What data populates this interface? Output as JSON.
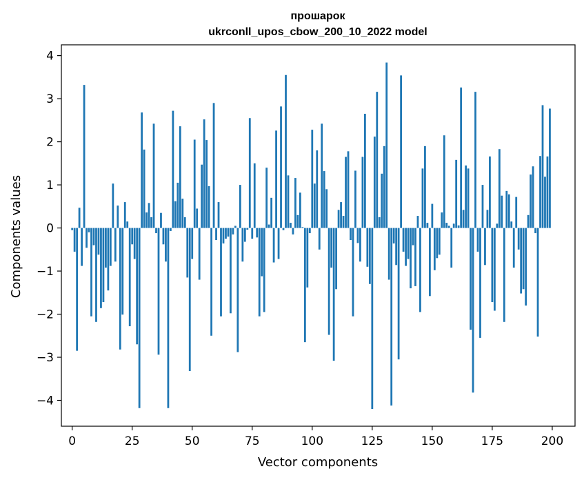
{
  "chart_data": {
    "type": "bar",
    "title_line1": "прошарок",
    "title_line2": "ukrconll_upos_cbow_200_10_2022 model",
    "xlabel": "Vector components",
    "ylabel": "Components values",
    "xlim": [
      -4.5,
      209.5
    ],
    "ylim": [
      -4.6,
      4.25
    ],
    "xticks": [
      0,
      25,
      50,
      75,
      100,
      125,
      150,
      175,
      200
    ],
    "yticks": [
      -4,
      -3,
      -2,
      -1,
      0,
      1,
      2,
      3,
      4
    ],
    "xtick_labels": [
      "0",
      "25",
      "50",
      "75",
      "100",
      "125",
      "150",
      "175",
      "200"
    ],
    "ytick_labels": [
      "−4",
      "−3",
      "−2",
      "−1",
      "0",
      "1",
      "2",
      "3",
      "4"
    ],
    "bar_color": "#1f77b4",
    "x": [
      0,
      1,
      2,
      3,
      4,
      5,
      6,
      7,
      8,
      9,
      10,
      11,
      12,
      13,
      14,
      15,
      16,
      17,
      18,
      19,
      20,
      21,
      22,
      23,
      24,
      25,
      26,
      27,
      28,
      29,
      30,
      31,
      32,
      33,
      34,
      35,
      36,
      37,
      38,
      39,
      40,
      41,
      42,
      43,
      44,
      45,
      46,
      47,
      48,
      49,
      50,
      51,
      52,
      53,
      54,
      55,
      56,
      57,
      58,
      59,
      60,
      61,
      62,
      63,
      64,
      65,
      66,
      67,
      68,
      69,
      70,
      71,
      72,
      73,
      74,
      75,
      76,
      77,
      78,
      79,
      80,
      81,
      82,
      83,
      84,
      85,
      86,
      87,
      88,
      89,
      90,
      91,
      92,
      93,
      94,
      95,
      96,
      97,
      98,
      99,
      100,
      101,
      102,
      103,
      104,
      105,
      106,
      107,
      108,
      109,
      110,
      111,
      112,
      113,
      114,
      115,
      116,
      117,
      118,
      119,
      120,
      121,
      122,
      123,
      124,
      125,
      126,
      127,
      128,
      129,
      130,
      131,
      132,
      133,
      134,
      135,
      136,
      137,
      138,
      139,
      140,
      141,
      142,
      143,
      144,
      145,
      146,
      147,
      148,
      149,
      150,
      151,
      152,
      153,
      154,
      155,
      156,
      157,
      158,
      159,
      160,
      161,
      162,
      163,
      164,
      165,
      166,
      167,
      168,
      169,
      170,
      171,
      172,
      173,
      174,
      175,
      176,
      177,
      178,
      179,
      180,
      181,
      182,
      183,
      184,
      185,
      186,
      187,
      188,
      189,
      190,
      191,
      192,
      193,
      194,
      195,
      196,
      197,
      198,
      199
    ],
    "values": [
      -0.05,
      -0.55,
      -2.85,
      0.47,
      -0.88,
      3.32,
      -0.46,
      -0.1,
      -2.05,
      -0.4,
      -2.18,
      -0.62,
      -1.86,
      -1.72,
      -0.92,
      -1.45,
      -0.88,
      1.03,
      -0.78,
      0.52,
      -2.82,
      -2.01,
      0.6,
      0.15,
      -2.28,
      -0.38,
      -0.72,
      -2.7,
      -4.18,
      2.68,
      1.82,
      0.36,
      0.58,
      0.25,
      2.42,
      -0.12,
      -2.94,
      0.35,
      -0.38,
      -0.78,
      -4.18,
      -0.07,
      2.72,
      0.62,
      1.05,
      2.36,
      0.68,
      0.25,
      -1.15,
      -3.32,
      -0.72,
      2.05,
      0.45,
      -1.2,
      1.47,
      2.52,
      2.04,
      0.97,
      -2.5,
      2.9,
      -0.28,
      0.6,
      -2.05,
      -0.36,
      -0.25,
      -0.2,
      -1.98,
      -0.15,
      0.05,
      -2.88,
      1.0,
      -0.78,
      -0.32,
      -0.04,
      2.55,
      -0.25,
      1.5,
      -0.22,
      -2.05,
      -1.12,
      -1.95,
      1.4,
      0.08,
      0.7,
      -0.8,
      2.26,
      -0.72,
      2.82,
      -0.05,
      3.55,
      1.22,
      0.12,
      -0.15,
      1.16,
      0.3,
      0.82,
      0.02,
      -2.65,
      -1.38,
      -0.12,
      2.28,
      1.03,
      1.8,
      -0.5,
      2.42,
      1.32,
      0.9,
      -2.48,
      -0.92,
      -3.08,
      -1.42,
      0.42,
      0.6,
      0.28,
      1.65,
      1.78,
      -0.28,
      -2.05,
      1.33,
      -0.35,
      -0.78,
      1.65,
      2.65,
      -0.9,
      -1.3,
      -4.2,
      2.12,
      3.16,
      0.25,
      1.26,
      1.9,
      3.84,
      -1.2,
      -4.12,
      -0.36,
      -0.86,
      -3.05,
      3.54,
      -0.55,
      -0.88,
      -0.72,
      -1.4,
      -0.4,
      -1.35,
      0.28,
      -1.95,
      1.38,
      1.9,
      0.12,
      -1.58,
      0.56,
      -0.98,
      -0.7,
      -0.62,
      0.36,
      2.15,
      0.12,
      0.05,
      -0.92,
      0.1,
      1.58,
      0.06,
      3.26,
      0.42,
      1.45,
      1.38,
      -2.36,
      -3.82,
      3.16,
      -0.55,
      -2.55,
      1.0,
      -0.86,
      0.42,
      1.66,
      -1.72,
      -1.92,
      0.1,
      1.83,
      0.75,
      -2.18,
      0.86,
      0.78,
      0.15,
      -0.92,
      0.72,
      -0.5,
      -1.52,
      -1.42,
      -1.8,
      0.3,
      1.24,
      1.43,
      -0.12,
      -2.52,
      1.67,
      2.85,
      1.19,
      1.66,
      2.77
    ]
  }
}
